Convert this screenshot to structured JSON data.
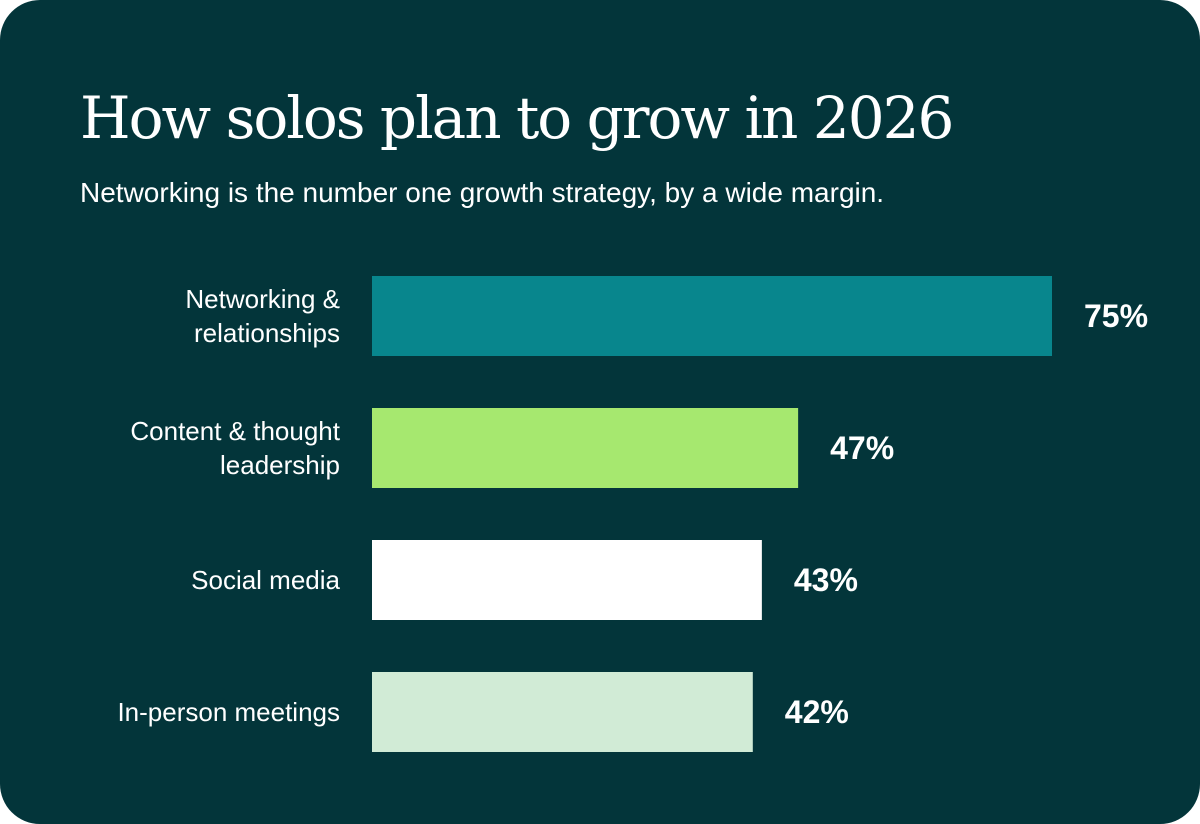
{
  "card": {
    "background": "#03353a"
  },
  "header": {
    "title": "How solos plan to grow in 2026",
    "subtitle": "Networking is the number one growth strategy, by a wide margin."
  },
  "chart_data": {
    "type": "bar",
    "orientation": "horizontal",
    "categories": [
      [
        "Networking &",
        "relationships"
      ],
      [
        "Content & thought",
        "leadership"
      ],
      [
        "Social media"
      ],
      [
        "In-person meetings"
      ]
    ],
    "values": [
      75,
      47,
      43,
      42
    ],
    "value_labels": [
      "75%",
      "47%",
      "43%",
      "42%"
    ],
    "colors": [
      "#08868d",
      "#a6e86f",
      "#ffffff",
      "#d1ebd6"
    ],
    "xlim": [
      0,
      100
    ],
    "grid": false,
    "legend": "none"
  }
}
